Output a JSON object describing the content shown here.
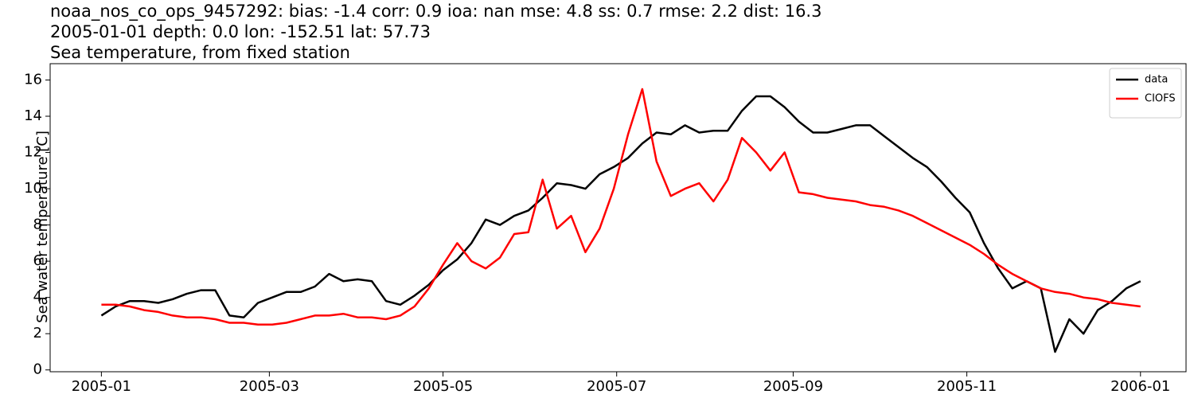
{
  "chart_data": {
    "type": "line",
    "title": [
      "noaa_nos_co_ops_9457292: bias: -1.4  corr: 0.9  ioa: nan  mse: 4.8  ss: 0.7  rmse: 2.2  dist: 16.3",
      "2005-01-01 depth: 0.0 lon: -152.51 lat: 57.73",
      "Sea temperature, from fixed station"
    ],
    "ylabel": "Sea water temperature [C]",
    "x": [
      0,
      5,
      10,
      15,
      20,
      25,
      30,
      35,
      40,
      45,
      50,
      55,
      60,
      65,
      70,
      75,
      80,
      85,
      90,
      95,
      100,
      105,
      110,
      115,
      120,
      125,
      130,
      135,
      140,
      145,
      150,
      155,
      160,
      165,
      170,
      175,
      180,
      185,
      190,
      195,
      200,
      205,
      210,
      215,
      220,
      225,
      230,
      235,
      240,
      245,
      250,
      255,
      260,
      265,
      270,
      275,
      280,
      285,
      290,
      295,
      300,
      305,
      310,
      315,
      320,
      325,
      330,
      335,
      340,
      345,
      350,
      355,
      360,
      365
    ],
    "series": [
      {
        "name": "data",
        "color": "#000000",
        "values": [
          3.0,
          3.5,
          3.8,
          3.8,
          3.7,
          3.9,
          4.2,
          4.4,
          4.4,
          3.0,
          2.9,
          3.7,
          4.0,
          4.3,
          4.3,
          4.6,
          5.3,
          4.9,
          5.0,
          4.9,
          3.8,
          3.6,
          4.1,
          4.7,
          5.5,
          6.1,
          7.0,
          8.3,
          8.0,
          8.5,
          8.8,
          9.5,
          10.3,
          10.2,
          10.0,
          10.8,
          11.2,
          11.7,
          12.5,
          13.1,
          13.0,
          13.5,
          13.1,
          13.2,
          13.2,
          14.3,
          15.1,
          15.1,
          14.5,
          13.7,
          13.1,
          13.1,
          13.3,
          13.5,
          13.5,
          12.9,
          12.3,
          11.7,
          11.2,
          10.4,
          9.5,
          8.7,
          7.0,
          5.6,
          4.5,
          4.9,
          4.5,
          1.0,
          2.8,
          2.0,
          3.3,
          3.8,
          4.5,
          4.9
        ]
      },
      {
        "name": "CIOFS",
        "color": "#ff0000",
        "values": [
          3.6,
          3.6,
          3.5,
          3.3,
          3.2,
          3.0,
          2.9,
          2.9,
          2.8,
          2.6,
          2.6,
          2.5,
          2.5,
          2.6,
          2.8,
          3.0,
          3.0,
          3.1,
          2.9,
          2.9,
          2.8,
          3.0,
          3.5,
          4.5,
          5.8,
          7.0,
          6.0,
          5.6,
          6.2,
          7.5,
          7.6,
          10.5,
          7.8,
          8.5,
          6.5,
          7.8,
          10.0,
          13.0,
          15.5,
          11.5,
          9.6,
          10.0,
          10.3,
          9.3,
          10.5,
          12.8,
          12.0,
          11.0,
          12.0,
          9.8,
          9.7,
          9.5,
          9.4,
          9.3,
          9.1,
          9.0,
          8.8,
          8.5,
          8.1,
          7.7,
          7.3,
          6.9,
          6.4,
          5.8,
          5.3,
          4.9,
          4.5,
          4.3,
          4.2,
          4.0,
          3.9,
          3.7,
          3.6,
          3.5
        ]
      }
    ],
    "xlim": [
      -18,
      381
    ],
    "xticks": [
      {
        "value": 0,
        "label": "2005-01"
      },
      {
        "value": 59,
        "label": "2005-03"
      },
      {
        "value": 120,
        "label": "2005-05"
      },
      {
        "value": 181,
        "label": "2005-07"
      },
      {
        "value": 243,
        "label": "2005-09"
      },
      {
        "value": 304,
        "label": "2005-11"
      },
      {
        "value": 365,
        "label": "2006-01"
      }
    ],
    "ylim": [
      -0.1,
      16.9
    ],
    "yticks": [
      0,
      2,
      4,
      6,
      8,
      10,
      12,
      14,
      16
    ],
    "legend": "upper right"
  }
}
